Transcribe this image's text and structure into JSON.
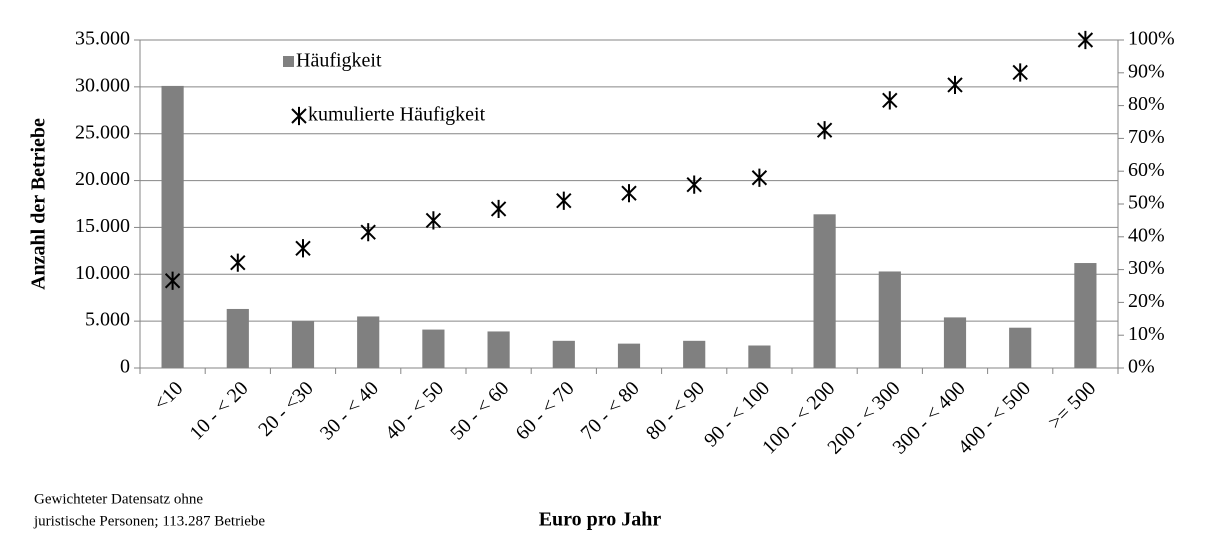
{
  "chart_data": {
    "type": "bar",
    "categories": [
      "<10",
      "10 - < 20",
      "20 - <30",
      "30 - < 40",
      "40 - < 50",
      "50 - < 60",
      "60 - < 70",
      "70 - < 80",
      "80 - < 90",
      "90 - < 100",
      "100 - < 200",
      "200 - < 300",
      "300 - < 400",
      "400 - < 500",
      ">= 500"
    ],
    "series": [
      {
        "name": "Häufigkeit",
        "type": "bar",
        "color": "#808080",
        "axis": "y",
        "values": [
          30100,
          6300,
          5000,
          5500,
          4100,
          3900,
          2900,
          2600,
          2900,
          2400,
          16400,
          10300,
          5400,
          4300,
          11200
        ]
      },
      {
        "name": "kumulierte Häufigkeit",
        "type": "scatter",
        "color": "#000000",
        "axis": "y2",
        "values": [
          26.6,
          32.1,
          36.5,
          41.4,
          45.0,
          48.5,
          51.0,
          53.3,
          55.9,
          58.0,
          72.5,
          81.6,
          86.3,
          90.1,
          100
        ]
      }
    ],
    "ylabel": "Anzahl der Betriebe",
    "xlabel": "Euro pro Jahr",
    "note": [
      "Gewichteter Datensatz ohne",
      "juristische Personen; 113.287 Betriebe"
    ],
    "ylim": [
      0,
      35000
    ],
    "yticks": [
      0,
      {
        "value": 5000,
        "label": "5.000"
      },
      {
        "value": 10000,
        "label": "10.000"
      },
      {
        "value": 15000,
        "label": "15.000"
      },
      {
        "value": 20000,
        "label": "20.000"
      },
      {
        "value": 25000,
        "label": "25.000"
      },
      {
        "value": 30000,
        "label": "30.000"
      },
      {
        "value": 35000,
        "label": "35.000"
      }
    ],
    "y2lim": [
      0,
      100
    ],
    "y2ticks": [
      {
        "value": 0,
        "label": "0%"
      },
      {
        "value": 10,
        "label": "10%"
      },
      {
        "value": 20,
        "label": "20%"
      },
      {
        "value": 30,
        "label": "30%"
      },
      {
        "value": 40,
        "label": "40%"
      },
      {
        "value": 50,
        "label": "50%"
      },
      {
        "value": 60,
        "label": "60%"
      },
      {
        "value": 70,
        "label": "70%"
      },
      {
        "value": 80,
        "label": "80%"
      },
      {
        "value": 90,
        "label": "90%"
      },
      {
        "value": 100,
        "label": "100%"
      }
    ],
    "grid": true,
    "legend": "top-left"
  }
}
